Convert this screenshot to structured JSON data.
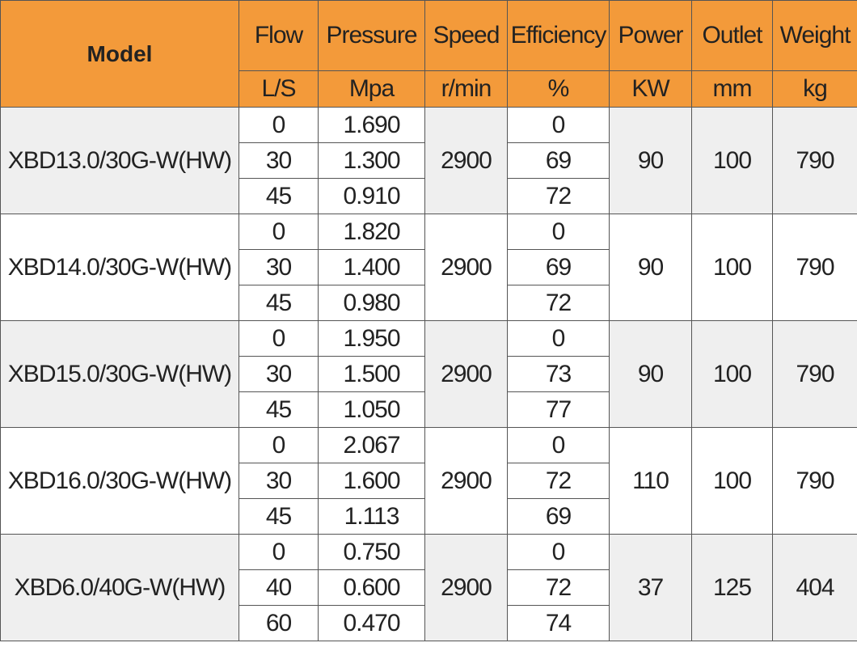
{
  "header": {
    "model": "Model",
    "columns": [
      {
        "title": "Flow",
        "unit": "L/S"
      },
      {
        "title": "Pressure",
        "unit": "Mpa"
      },
      {
        "title": "Speed",
        "unit": "r/min"
      },
      {
        "title": "Efficiency",
        "unit": "%"
      },
      {
        "title": "Power",
        "unit": "KW"
      },
      {
        "title": "Outlet",
        "unit": "mm"
      },
      {
        "title": "Weight",
        "unit": "kg"
      }
    ]
  },
  "groups": [
    {
      "model": "XBD13.0/30G-W(HW)",
      "speed": "2900",
      "power": "90",
      "outlet": "100",
      "weight": "790",
      "rows": [
        {
          "flow": "0",
          "pressure": "1.690",
          "efficiency": "0"
        },
        {
          "flow": "30",
          "pressure": "1.300",
          "efficiency": "69"
        },
        {
          "flow": "45",
          "pressure": "0.910",
          "efficiency": "72"
        }
      ]
    },
    {
      "model": "XBD14.0/30G-W(HW)",
      "speed": "2900",
      "power": "90",
      "outlet": "100",
      "weight": "790",
      "rows": [
        {
          "flow": "0",
          "pressure": "1.820",
          "efficiency": "0"
        },
        {
          "flow": "30",
          "pressure": "1.400",
          "efficiency": "69"
        },
        {
          "flow": "45",
          "pressure": "0.980",
          "efficiency": "72"
        }
      ]
    },
    {
      "model": "XBD15.0/30G-W(HW)",
      "speed": "2900",
      "power": "90",
      "outlet": "100",
      "weight": "790",
      "rows": [
        {
          "flow": "0",
          "pressure": "1.950",
          "efficiency": "0"
        },
        {
          "flow": "30",
          "pressure": "1.500",
          "efficiency": "73"
        },
        {
          "flow": "45",
          "pressure": "1.050",
          "efficiency": "77"
        }
      ]
    },
    {
      "model": "XBD16.0/30G-W(HW)",
      "speed": "2900",
      "power": "110",
      "outlet": "100",
      "weight": "790",
      "rows": [
        {
          "flow": "0",
          "pressure": "2.067",
          "efficiency": "0"
        },
        {
          "flow": "30",
          "pressure": "1.600",
          "efficiency": "72"
        },
        {
          "flow": "45",
          "pressure": "1.113",
          "efficiency": "69"
        }
      ]
    },
    {
      "model": "XBD6.0/40G-W(HW)",
      "speed": "2900",
      "power": "37",
      "outlet": "125",
      "weight": "404",
      "rows": [
        {
          "flow": "0",
          "pressure": "0.750",
          "efficiency": "0"
        },
        {
          "flow": "40",
          "pressure": "0.600",
          "efficiency": "72"
        },
        {
          "flow": "60",
          "pressure": "0.470",
          "efficiency": "74"
        }
      ]
    }
  ]
}
